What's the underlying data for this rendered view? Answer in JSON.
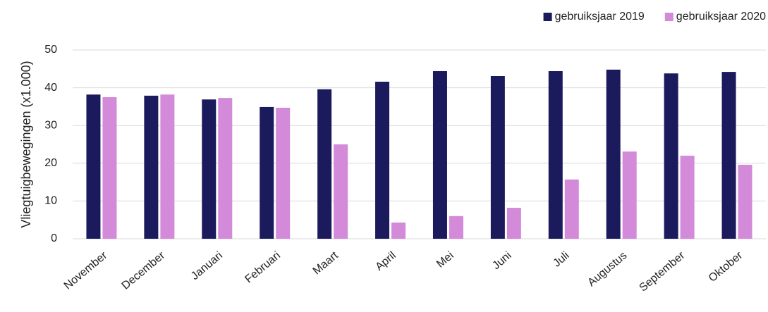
{
  "chart_data": {
    "type": "bar",
    "y_label": "Vliegtuigbewegingen (x1.000)",
    "categories": [
      "November",
      "December",
      "Januari",
      "Februari",
      "Maart",
      "April",
      "Mei",
      "Juni",
      "Juli",
      "Augustus",
      "September",
      "Oktober"
    ],
    "series": [
      {
        "name": "gebruiksjaar 2019",
        "color": "#1b1a5c",
        "values": [
          38.2,
          37.9,
          36.9,
          34.9,
          39.6,
          41.6,
          44.4,
          43.1,
          44.4,
          44.8,
          43.8,
          44.2
        ]
      },
      {
        "name": "gebruiksjaar 2020",
        "color": "#d38ad9",
        "values": [
          37.5,
          38.2,
          37.3,
          34.7,
          25.0,
          4.3,
          6.0,
          8.2,
          15.7,
          23.1,
          22.0,
          19.6
        ]
      }
    ],
    "ylim": [
      0,
      50
    ],
    "yticks": [
      0,
      10,
      20,
      30,
      40,
      50
    ],
    "grid": true,
    "legend": "top-right"
  }
}
